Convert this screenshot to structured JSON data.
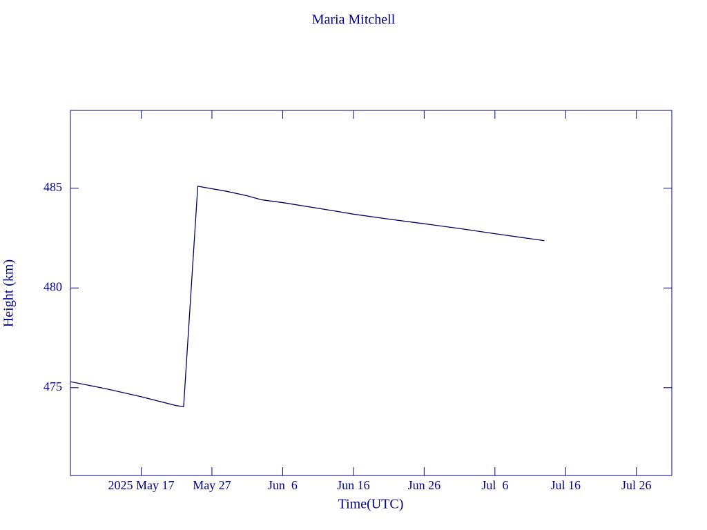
{
  "chart_data": {
    "type": "line",
    "title": "Maria Mitchell",
    "x_label": "Time(UTC)",
    "y_label": "Height (km)",
    "x": [
      "2025-05-07",
      "2025-05-12",
      "2025-05-17",
      "2025-05-22",
      "2025-05-23",
      "2025-05-25",
      "2025-05-29",
      "2025-06-01",
      "2025-06-03",
      "2025-06-06",
      "2025-06-13",
      "2025-06-16",
      "2025-06-21",
      "2025-06-26",
      "2025-07-01",
      "2025-07-06",
      "2025-07-13"
    ],
    "series": [
      {
        "color": "#000060",
        "values": [
          475.3,
          474.95,
          474.55,
          474.1,
          474.05,
          485.1,
          484.85,
          484.62,
          484.42,
          484.28,
          483.88,
          483.7,
          483.45,
          483.22,
          482.98,
          482.72,
          482.37
        ]
      }
    ],
    "xlim": [
      "2025-05-07",
      "2025-07-31"
    ],
    "xticks": [
      {
        "value": "2025-05-17",
        "label": "2025 May 17"
      },
      {
        "value": "2025-05-27",
        "label": "May 27"
      },
      {
        "value": "2025-06-06",
        "label": "Jun  6"
      },
      {
        "value": "2025-06-16",
        "label": "Jun 16"
      },
      {
        "value": "2025-06-26",
        "label": "Jun 26"
      },
      {
        "value": "2025-07-06",
        "label": "Jul  6"
      },
      {
        "value": "2025-07-16",
        "label": "Jul 16"
      },
      {
        "value": "2025-07-26",
        "label": "Jul 26"
      }
    ],
    "ylim": [
      470.6,
      488.9
    ],
    "yticks": [
      475,
      480,
      485
    ],
    "grid": false
  }
}
